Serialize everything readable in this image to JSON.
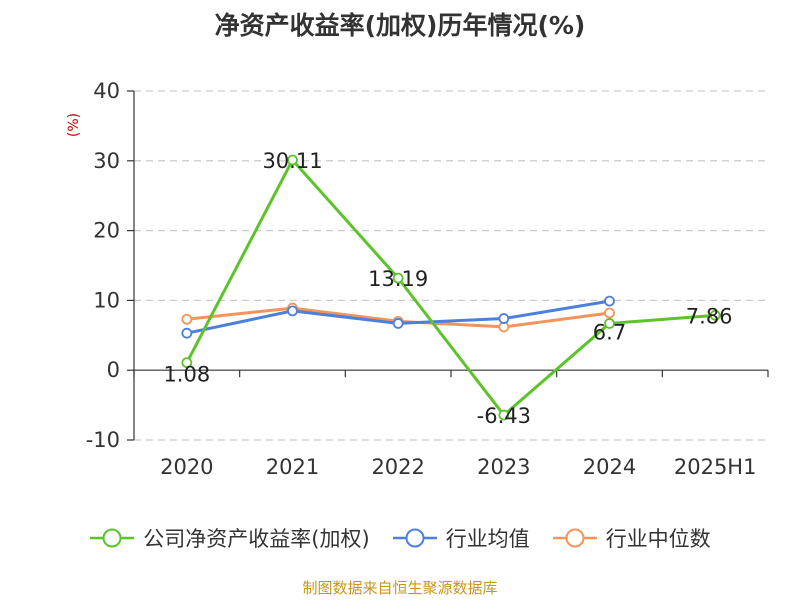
{
  "chart_data": {
    "type": "line",
    "title": "净资产收益率(加权)历年情况(%)",
    "ylabel": "(%)",
    "xlabel": "",
    "categories": [
      "2020",
      "2021",
      "2022",
      "2023",
      "2024",
      "2025H1"
    ],
    "ylim": [
      -10,
      40
    ],
    "yticks": [
      -10,
      0,
      10,
      20,
      30,
      40
    ],
    "grid": true,
    "legend_position": "bottom",
    "series": [
      {
        "name": "公司净资产收益率(加权)",
        "color": "#5cc32a",
        "values": [
          1.08,
          30.11,
          13.19,
          -6.43,
          6.7,
          7.86
        ],
        "data_labels": [
          "1.08",
          "30.11",
          "13.19",
          "-6.43",
          "6.7",
          "7.86"
        ]
      },
      {
        "name": "行业均值",
        "color": "#4d7fdd",
        "values": [
          5.3,
          8.5,
          6.7,
          7.4,
          9.9,
          null
        ]
      },
      {
        "name": "行业中位数",
        "color": "#f5935a",
        "values": [
          7.3,
          8.9,
          7.0,
          6.2,
          8.2,
          null
        ]
      }
    ]
  },
  "footer": {
    "source": "制图数据来自恒生聚源数据库"
  }
}
